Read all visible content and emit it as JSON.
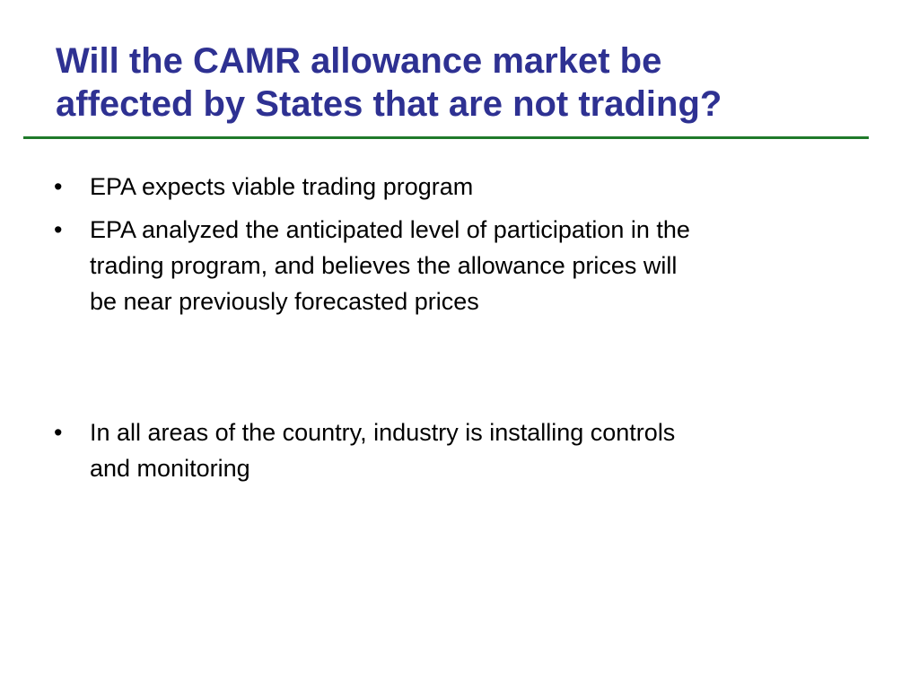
{
  "slide": {
    "title_lines": [
      "Will the CAMR allowance market be",
      "affected by States that are not trading?"
    ],
    "bullet_glyph": "•",
    "bullets": [
      {
        "lines": [
          "EPA expects viable trading program"
        ]
      },
      {
        "lines": [
          "EPA analyzed the anticipated level of participation in the",
          "trading program, and believes the allowance prices will",
          "be near previously forecasted prices"
        ]
      },
      {
        "lines": [
          "In all areas of the country, industry is installing controls",
          "and monitoring"
        ]
      }
    ]
  },
  "colors": {
    "title": "#2e3192",
    "rule": "#1f7a2a",
    "body_text": "#000000",
    "background": "#ffffff"
  }
}
